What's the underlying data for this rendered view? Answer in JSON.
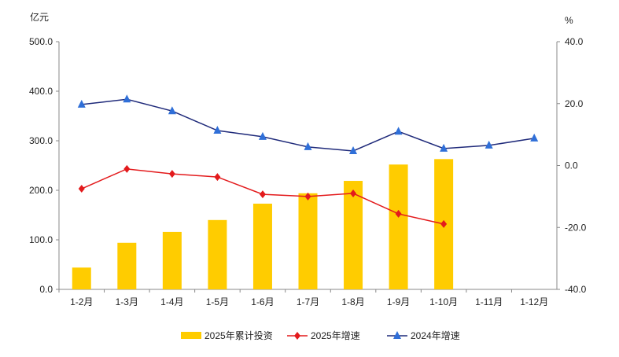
{
  "chart_data": {
    "type": "bar+line",
    "categories": [
      "1-2月",
      "1-3月",
      "1-4月",
      "1-5月",
      "1-6月",
      "1-7月",
      "1-8月",
      "1-9月",
      "1-10月",
      "1-11月",
      "1-12月"
    ],
    "left_axis": {
      "label": "亿元",
      "ylim": [
        0,
        500
      ],
      "ticks": [
        "0.0",
        "100.0",
        "200.0",
        "300.0",
        "400.0",
        "500.0"
      ]
    },
    "right_axis": {
      "label": "%",
      "ylim": [
        -40,
        40
      ],
      "ticks": [
        "-40.0",
        "-20.0",
        "0.0",
        "20.0",
        "40.0"
      ]
    },
    "grid": false,
    "legend_position": "bottom",
    "series": [
      {
        "name": "2025年累计投资",
        "type": "bar",
        "axis": "left",
        "color": "#FFCC00",
        "values": [
          44,
          94,
          116,
          140,
          173,
          194,
          219,
          252,
          263,
          null,
          null
        ]
      },
      {
        "name": "2025年增速",
        "type": "line",
        "axis": "right",
        "color": "#E31A1C",
        "marker": "diamond",
        "values": [
          -7.5,
          -1.1,
          -2.7,
          -3.7,
          -9.3,
          -10.0,
          -9.0,
          -15.6,
          -18.9,
          null,
          null
        ]
      },
      {
        "name": "2024年增速",
        "type": "line",
        "axis": "right",
        "color": "#1F2A7A",
        "marker_color": "#2F6FD8",
        "marker": "triangle",
        "values": [
          19.7,
          21.4,
          17.6,
          11.3,
          9.3,
          6.0,
          4.7,
          11.0,
          5.5,
          6.5,
          8.8
        ]
      }
    ]
  }
}
